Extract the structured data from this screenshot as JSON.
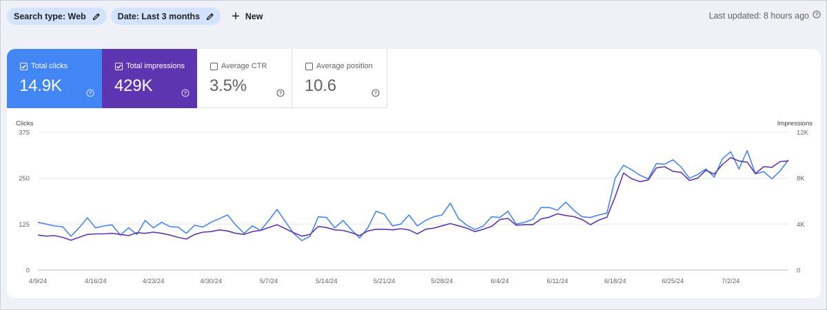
{
  "filters": {
    "chips": [
      {
        "label": "Search type: Web"
      },
      {
        "label": "Date: Last 3 months"
      }
    ],
    "new_label": "New"
  },
  "last_updated": "Last updated: 8 hours ago",
  "metrics": [
    {
      "label": "Total clicks",
      "value": "14.9K",
      "checked": true,
      "color": "#4285f4"
    },
    {
      "label": "Total impressions",
      "value": "429K",
      "checked": true,
      "color": "#5e35b1"
    },
    {
      "label": "Average CTR",
      "value": "3.5%",
      "checked": false,
      "color": "#ffffff"
    },
    {
      "label": "Average position",
      "value": "10.6",
      "checked": false,
      "color": "#ffffff"
    }
  ],
  "chart_data": {
    "type": "line",
    "left_axis_title": "Clicks",
    "right_axis_title": "Impressions",
    "left_ylim": [
      0,
      375
    ],
    "right_ylim": [
      0,
      12000
    ],
    "left_ticks": [
      "0",
      "125",
      "250",
      "375"
    ],
    "right_ticks": [
      "0",
      "4K",
      "8K",
      "12K"
    ],
    "x_tick_labels": [
      "4/9/24",
      "4/16/24",
      "4/23/24",
      "4/30/24",
      "5/7/24",
      "5/14/24",
      "5/21/24",
      "5/28/24",
      "6/4/24",
      "6/11/24",
      "6/18/24",
      "6/25/24",
      "7/2/24"
    ],
    "x_tick_day_index": [
      0,
      7,
      14,
      21,
      28,
      35,
      42,
      49,
      56,
      63,
      70,
      77,
      84
    ],
    "series": [
      {
        "name": "Clicks",
        "axis": "left",
        "color": "#4285f4",
        "values": [
          130,
          125,
          120,
          118,
          92,
          115,
          142,
          115,
          120,
          123,
          95,
          115,
          97,
          135,
          115,
          130,
          118,
          117,
          100,
          122,
          117,
          130,
          140,
          150,
          122,
          100,
          120,
          108,
          135,
          165,
          132,
          100,
          80,
          92,
          145,
          143,
          115,
          135,
          110,
          87,
          115,
          160,
          152,
          120,
          125,
          150,
          120,
          135,
          145,
          150,
          182,
          140,
          122,
          110,
          120,
          145,
          143,
          160,
          125,
          130,
          138,
          170,
          170,
          163,
          185,
          162,
          145,
          143,
          150,
          155,
          250,
          285,
          273,
          258,
          248,
          290,
          288,
          300,
          280,
          250,
          260,
          275,
          253,
          303,
          322,
          275,
          325,
          262,
          268,
          248,
          270,
          300
        ]
      },
      {
        "name": "Impressions",
        "axis": "right",
        "color": "#5e35b1",
        "values": [
          3050,
          2950,
          3000,
          2850,
          2600,
          2850,
          3100,
          3150,
          3150,
          3200,
          3100,
          3000,
          3250,
          3200,
          3300,
          3200,
          3050,
          2850,
          2700,
          3100,
          3300,
          3350,
          3500,
          3400,
          3200,
          3100,
          3350,
          3450,
          3700,
          3950,
          3600,
          3250,
          2950,
          3100,
          3800,
          3700,
          3500,
          3450,
          3250,
          3000,
          3400,
          3550,
          3550,
          3500,
          3600,
          3500,
          3150,
          3550,
          3650,
          3850,
          4050,
          3850,
          3650,
          3350,
          3550,
          3800,
          4400,
          4500,
          3900,
          3950,
          3950,
          4450,
          4600,
          4900,
          4750,
          4650,
          4400,
          3950,
          4350,
          4600,
          6400,
          8450,
          7950,
          7700,
          7850,
          8900,
          9000,
          8600,
          8500,
          7800,
          8000,
          8700,
          8350,
          9200,
          9800,
          9500,
          9400,
          8400,
          9000,
          8950,
          9450,
          9500
        ]
      }
    ]
  }
}
